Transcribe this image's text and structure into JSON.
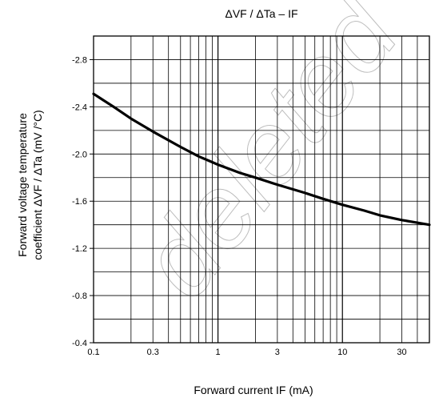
{
  "chart_data": {
    "type": "line",
    "title": "ΔVF / ΔTa – IF",
    "xlabel": "Forward current   IF   (mA)",
    "ylabel_line1": "Forward voltage temperature",
    "ylabel_line2": "coefficient   ΔVF / ΔTa   (mV /°C)",
    "x_scale": "log",
    "xlim": [
      0.1,
      50
    ],
    "ylim": [
      -0.4,
      -3.0
    ],
    "x_ticks": [
      0.1,
      0.3,
      1,
      3,
      10,
      30
    ],
    "x_tick_labels": [
      "0.1",
      "0.3",
      "1",
      "3",
      "10",
      "30"
    ],
    "y_ticks": [
      -0.4,
      -0.8,
      -1.2,
      -1.6,
      -2.0,
      -2.4,
      -2.8
    ],
    "y_tick_labels": [
      "-0.4",
      "-0.8",
      "-1.2",
      "-1.6",
      "-2.0",
      "-2.4",
      "-2.8"
    ],
    "grid": true,
    "series": [
      {
        "color": "#000000",
        "x": [
          0.1,
          0.15,
          0.2,
          0.3,
          0.5,
          0.7,
          1,
          1.5,
          2,
          3,
          5,
          7,
          10,
          15,
          20,
          30,
          50
        ],
        "y": [
          -2.51,
          -2.39,
          -2.3,
          -2.19,
          -2.06,
          -1.98,
          -1.91,
          -1.84,
          -1.8,
          -1.74,
          -1.67,
          -1.62,
          -1.57,
          -1.52,
          -1.48,
          -1.44,
          -1.4
        ]
      }
    ],
    "watermark": "deleted"
  }
}
